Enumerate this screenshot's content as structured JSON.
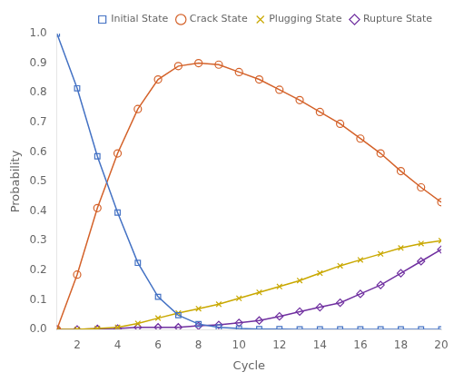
{
  "chart_data": {
    "type": "line",
    "x_label": "Cycle",
    "y_label": "Probability",
    "x": [
      1,
      2,
      3,
      4,
      5,
      6,
      7,
      8,
      9,
      10,
      11,
      12,
      13,
      14,
      15,
      16,
      17,
      18,
      19,
      20
    ],
    "series": [
      {
        "name": "Initial State",
        "color": "#4472C4",
        "marker": "square",
        "values": [
          1.0,
          0.815,
          0.585,
          0.395,
          0.225,
          0.11,
          0.048,
          0.018,
          0.007,
          0.003,
          0.001,
          0.001,
          0.0,
          0.0,
          0.0,
          0.0,
          0.0,
          0.0,
          0.0,
          0.0
        ]
      },
      {
        "name": "Crack State",
        "color": "#D4622A",
        "marker": "circle",
        "values": [
          0.0,
          0.185,
          0.41,
          0.595,
          0.745,
          0.845,
          0.89,
          0.9,
          0.895,
          0.87,
          0.845,
          0.81,
          0.775,
          0.735,
          0.695,
          0.645,
          0.595,
          0.535,
          0.48,
          0.43
        ]
      },
      {
        "name": "Plugging State",
        "color": "#C9A800",
        "marker": "x",
        "values": [
          0.0,
          0.0,
          0.003,
          0.007,
          0.02,
          0.038,
          0.055,
          0.07,
          0.085,
          0.105,
          0.125,
          0.145,
          0.165,
          0.19,
          0.215,
          0.235,
          0.255,
          0.275,
          0.29,
          0.3
        ]
      },
      {
        "name": "Rupture State",
        "color": "#7030A0",
        "marker": "diamond",
        "values": [
          0.0,
          0.0,
          0.002,
          0.003,
          0.007,
          0.007,
          0.007,
          0.012,
          0.015,
          0.022,
          0.03,
          0.044,
          0.06,
          0.075,
          0.09,
          0.12,
          0.15,
          0.19,
          0.23,
          0.27
        ]
      }
    ],
    "xlim": [
      1,
      20
    ],
    "ylim": [
      0,
      1.0
    ],
    "xticks": [
      2,
      4,
      6,
      8,
      10,
      12,
      14,
      16,
      18,
      20
    ],
    "yticks": [
      {
        "value": 0.0,
        "label": "0.0"
      },
      0.1,
      0.2,
      0.3,
      0.4,
      0.5,
      0.6,
      0.7,
      0.8,
      0.9,
      {
        "value": 1.0,
        "label": "1.0"
      }
    ],
    "grid": false,
    "legend": "upper right"
  }
}
